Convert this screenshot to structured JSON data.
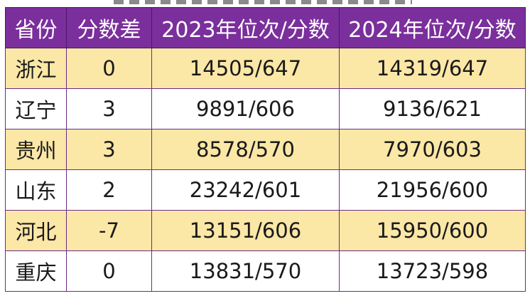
{
  "table": {
    "headers": [
      "省份",
      "分数差",
      "2023年位次/分数",
      "2024年位次/分数"
    ],
    "rows": [
      {
        "province": "浙江",
        "diff": "0",
        "y2023": "14505/647",
        "y2024": "14319/647"
      },
      {
        "province": "辽宁",
        "diff": "3",
        "y2023": "9891/606",
        "y2024": "9136/621"
      },
      {
        "province": "贵州",
        "diff": "3",
        "y2023": "8578/570",
        "y2024": "7970/603"
      },
      {
        "province": "山东",
        "diff": "2",
        "y2023": "23242/601",
        "y2024": "21956/600"
      },
      {
        "province": "河北",
        "diff": "-7",
        "y2023": "13151/606",
        "y2024": "15950/600"
      },
      {
        "province": "重庆",
        "diff": "0",
        "y2023": "13831/570",
        "y2024": "13723/598"
      }
    ]
  },
  "colors": {
    "header_bg": "#7a2f9c",
    "header_text": "#ffffff",
    "alt_row_bg": "#fbe7a6",
    "plain_row_bg": "#ffffff",
    "border": "#6b2c86"
  }
}
